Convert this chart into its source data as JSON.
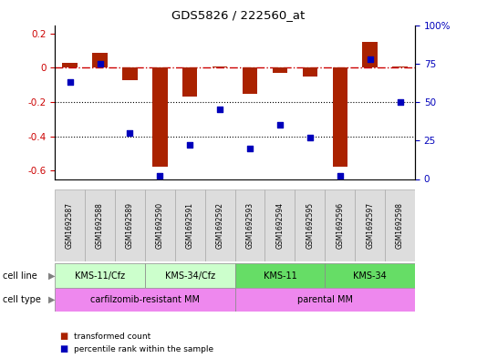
{
  "title": "GDS5826 / 222560_at",
  "samples": [
    "GSM1692587",
    "GSM1692588",
    "GSM1692589",
    "GSM1692590",
    "GSM1692591",
    "GSM1692592",
    "GSM1692593",
    "GSM1692594",
    "GSM1692595",
    "GSM1692596",
    "GSM1692597",
    "GSM1692598"
  ],
  "transformed_count": [
    0.03,
    0.09,
    -0.07,
    -0.58,
    -0.17,
    0.01,
    -0.15,
    -0.03,
    -0.05,
    -0.58,
    0.15,
    0.01
  ],
  "percentile_rank": [
    63,
    75,
    30,
    2,
    22,
    45,
    20,
    35,
    27,
    2,
    78,
    50
  ],
  "cell_line_labels": [
    "KMS-11/Cfz",
    "KMS-34/Cfz",
    "KMS-11",
    "KMS-34"
  ],
  "cell_line_ranges": [
    [
      0,
      3
    ],
    [
      3,
      6
    ],
    [
      6,
      9
    ],
    [
      9,
      12
    ]
  ],
  "cell_line_colors": [
    "#ccffcc",
    "#ccffcc",
    "#66dd66",
    "#66dd66"
  ],
  "cell_type_labels": [
    "carfilzomib-resistant MM",
    "parental MM"
  ],
  "cell_type_ranges": [
    [
      0,
      6
    ],
    [
      6,
      12
    ]
  ],
  "cell_type_color": "#ee88ee",
  "bar_color": "#aa2200",
  "dot_color": "#0000bb",
  "hline_color": "#cc0000",
  "dotline_color": "#000000",
  "ylim_left": [
    -0.65,
    0.25
  ],
  "ylim_right": [
    0,
    100
  ],
  "yticks_left": [
    -0.6,
    -0.4,
    -0.2,
    0.0,
    0.2
  ],
  "ytick_labels_left": [
    "-0.6",
    "-0.4",
    "-0.2",
    "0",
    "0.2"
  ],
  "yticks_right": [
    0,
    25,
    50,
    75,
    100
  ],
  "ytick_labels_right": [
    "0",
    "25",
    "50",
    "75",
    "100%"
  ],
  "sample_box_color": "#dddddd",
  "sample_box_edge": "#aaaaaa",
  "legend_items": [
    {
      "label": "transformed count",
      "color": "#aa2200"
    },
    {
      "label": "percentile rank within the sample",
      "color": "#0000bb"
    }
  ]
}
